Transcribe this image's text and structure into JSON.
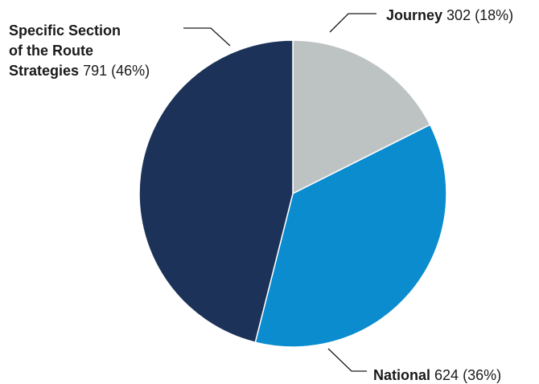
{
  "chart_data": {
    "type": "pie",
    "slices": [
      {
        "label": "Journey",
        "value": 302,
        "percent": "18%",
        "color": "#bdc3c3"
      },
      {
        "label": "National",
        "value": 624,
        "percent": "36%",
        "color": "#0a8ccf"
      },
      {
        "label": "Specific Section of the Route Strategies",
        "value": 791,
        "percent": "46%",
        "color": "#1c3258"
      }
    ],
    "labels": {
      "journey": {
        "name": "Journey",
        "value": "302",
        "pct": "(18%)"
      },
      "national": {
        "name": "National",
        "value": "624",
        "pct": "(36%)"
      },
      "specific": {
        "name_line1": "Specific Section",
        "name_line2": "of the Route",
        "name_line3": "Strategies",
        "value": "791",
        "pct": "(46%)"
      }
    }
  }
}
